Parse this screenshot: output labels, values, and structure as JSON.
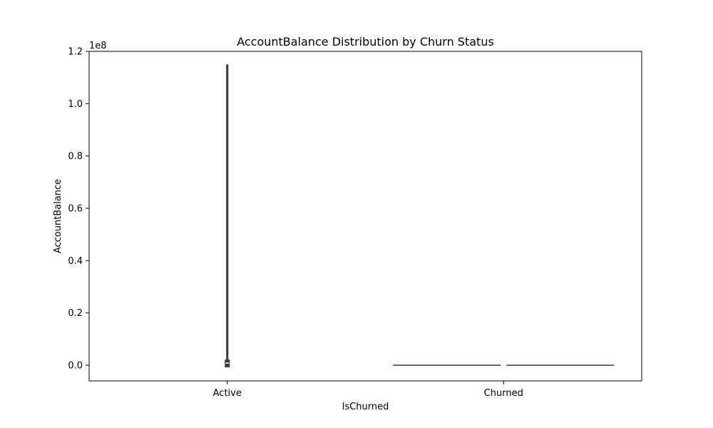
{
  "chart_data": {
    "type": "violin",
    "title": "AccountBalance Distribution by Churn Status",
    "xlabel": "IsChurned",
    "ylabel": "AccountBalance",
    "y_offset_text": "1e8",
    "y_scale_factor": 100000000,
    "categories": [
      "Active",
      "Churned"
    ],
    "ylim": [
      -6000000,
      120000000
    ],
    "yticks": [
      0,
      20000000,
      40000000,
      60000000,
      80000000,
      100000000,
      120000000
    ],
    "ytick_labels": [
      "0.0",
      "0.2",
      "0.4",
      "0.6",
      "0.8",
      "1.0",
      "1.2"
    ],
    "grid": false,
    "legend": false,
    "series": [
      {
        "category": "Active",
        "min": 0,
        "q1": 0,
        "median": 0,
        "q3": 2000000,
        "max": 115000000,
        "relative_width": 0.01
      },
      {
        "category": "Churned",
        "min": 0,
        "q1": 0,
        "median": 0,
        "q3": 0,
        "max": 0,
        "relative_width": 1.0
      }
    ],
    "colors": {
      "axis": "#000000",
      "violin_edge": "#3b3b3b",
      "inner_box": "#3b3b3b",
      "median": "#ffffff"
    }
  }
}
